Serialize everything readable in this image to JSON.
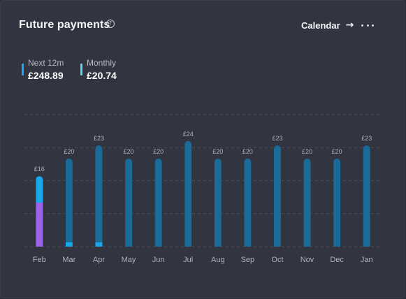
{
  "header": {
    "title": "Future payments",
    "help_icon": "?",
    "calendar_label": "Calendar",
    "arrow_icon": "→"
  },
  "stats": [
    {
      "label": "Next 12m",
      "value": "£248.89",
      "color": "#1ea7ff"
    },
    {
      "label": "Monthly",
      "value": "£20.74",
      "color": "#5fd3ee"
    }
  ],
  "chart_data": {
    "type": "bar",
    "categories": [
      "Feb",
      "Mar",
      "Apr",
      "May",
      "Jun",
      "Jul",
      "Aug",
      "Sep",
      "Oct",
      "Nov",
      "Dec",
      "Jan"
    ],
    "values": [
      16,
      20,
      23,
      20,
      20,
      24,
      20,
      20,
      23,
      20,
      20,
      23
    ],
    "labels": [
      "£16",
      "£20",
      "£23",
      "£20",
      "£20",
      "£24",
      "£20",
      "£20",
      "£23",
      "£20",
      "£20",
      "£23"
    ],
    "segments": [
      [
        {
          "value": 10,
          "color": "#9b63e6"
        },
        {
          "value": 6,
          "color": "#18a9ec"
        }
      ],
      [
        {
          "value": 1,
          "color": "#18a9ec"
        },
        {
          "value": 19,
          "color": "#1a6b97"
        }
      ],
      [
        {
          "value": 1,
          "color": "#18a9ec"
        },
        {
          "value": 22,
          "color": "#1a6b97"
        }
      ],
      [
        {
          "value": 20,
          "color": "#1a6b97"
        }
      ],
      [
        {
          "value": 20,
          "color": "#1a6b97"
        }
      ],
      [
        {
          "value": 24,
          "color": "#1a6b97"
        }
      ],
      [
        {
          "value": 20,
          "color": "#1a6b97"
        }
      ],
      [
        {
          "value": 20,
          "color": "#1a6b97"
        }
      ],
      [
        {
          "value": 23,
          "color": "#1a6b97"
        }
      ],
      [
        {
          "value": 20,
          "color": "#1a6b97"
        }
      ],
      [
        {
          "value": 20,
          "color": "#1a6b97"
        }
      ],
      [
        {
          "value": 23,
          "color": "#1a6b97"
        }
      ]
    ],
    "ylim": [
      0,
      30
    ],
    "grid": true,
    "colors": {
      "grid": "#4a4d5a",
      "bar": "#1a6b97",
      "highlight": "#18a9ec",
      "purple": "#9b63e6"
    }
  }
}
